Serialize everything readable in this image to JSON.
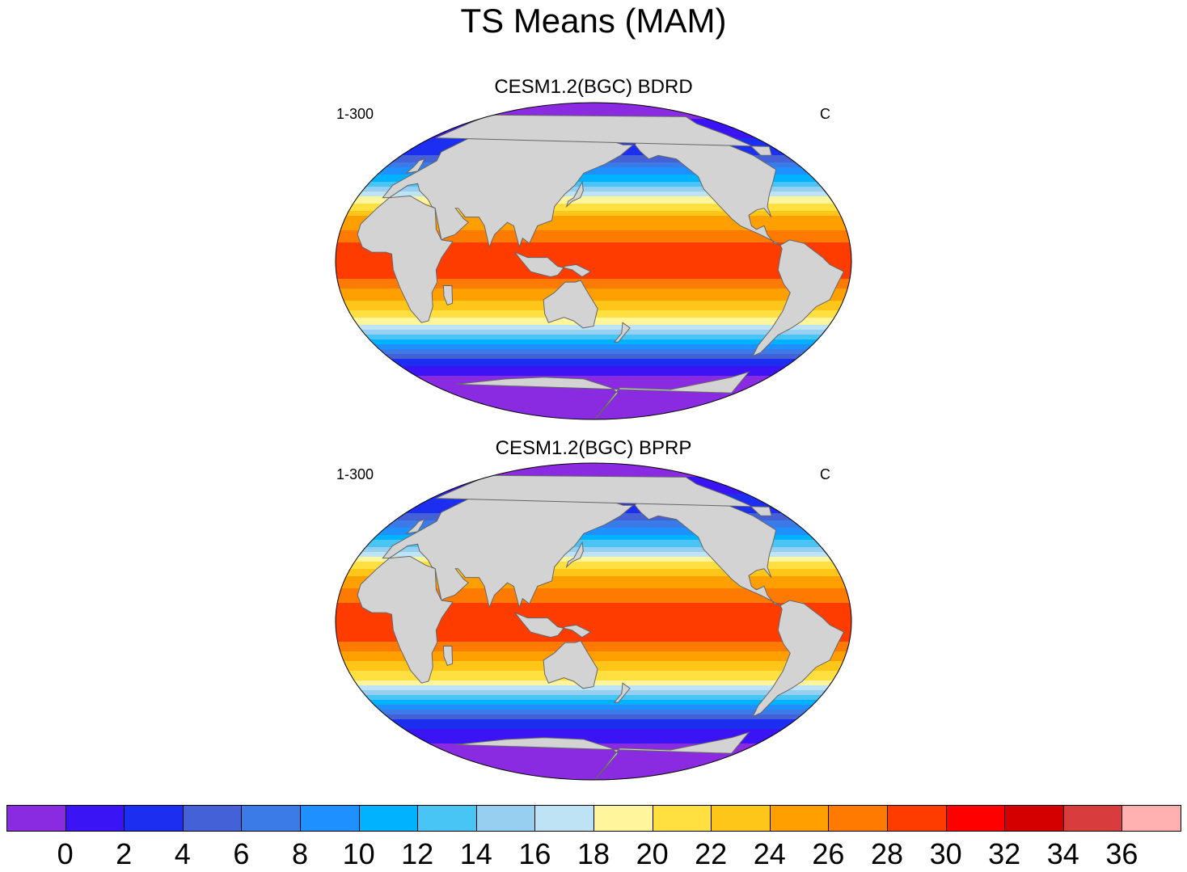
{
  "title": "TS Means (MAM)",
  "panels": [
    {
      "name": "CESM1.2(BGC) BDRD",
      "left_string": "1-300",
      "right_string": "C"
    },
    {
      "name": "CESM1.2(BGC) BPRP",
      "left_string": "1-300",
      "right_string": "C"
    }
  ],
  "chart_data": {
    "type": "heatmap",
    "projection": "robinson",
    "variable": "TS",
    "units": "C",
    "season": "MAM",
    "years": "1-300",
    "colorbar": {
      "levels": [
        0,
        2,
        4,
        6,
        8,
        10,
        12,
        14,
        16,
        18,
        20,
        22,
        24,
        26,
        28,
        30,
        32,
        34,
        36
      ],
      "tick_labels": [
        "0",
        "2",
        "4",
        "6",
        "8",
        "10",
        "12",
        "14",
        "16",
        "18",
        "20",
        "22",
        "24",
        "26",
        "28",
        "30",
        "32",
        "34",
        "36"
      ],
      "colors": [
        "#8a2be2",
        "#3b14f5",
        "#1c2ef0",
        "#4461d8",
        "#3a7be8",
        "#1e90ff",
        "#00b2ff",
        "#48c4f5",
        "#96cff0",
        "#bde3f5",
        "#fff59d",
        "#ffe040",
        "#ffc61a",
        "#ffa000",
        "#ff7a00",
        "#ff3c00",
        "#ff0000",
        "#d40000",
        "#d83c3c",
        "#ffb0b0"
      ]
    },
    "land_color": "#d3d3d3",
    "zonal_bands": [
      {
        "lat": 90,
        "value": -2
      },
      {
        "lat": 60,
        "value": 4
      },
      {
        "lat": 45,
        "value": 12
      },
      {
        "lat": 35,
        "value": 19
      },
      {
        "lat": 25,
        "value": 24
      },
      {
        "lat": 10,
        "value": 28
      },
      {
        "lat": 0,
        "value": 29
      },
      {
        "lat": -10,
        "value": 28
      },
      {
        "lat": -25,
        "value": 23
      },
      {
        "lat": -35,
        "value": 19
      },
      {
        "lat": -45,
        "value": 11
      },
      {
        "lat": -55,
        "value": 4
      },
      {
        "lat": -65,
        "value": 0
      },
      {
        "lat": -90,
        "value": -2
      }
    ]
  }
}
